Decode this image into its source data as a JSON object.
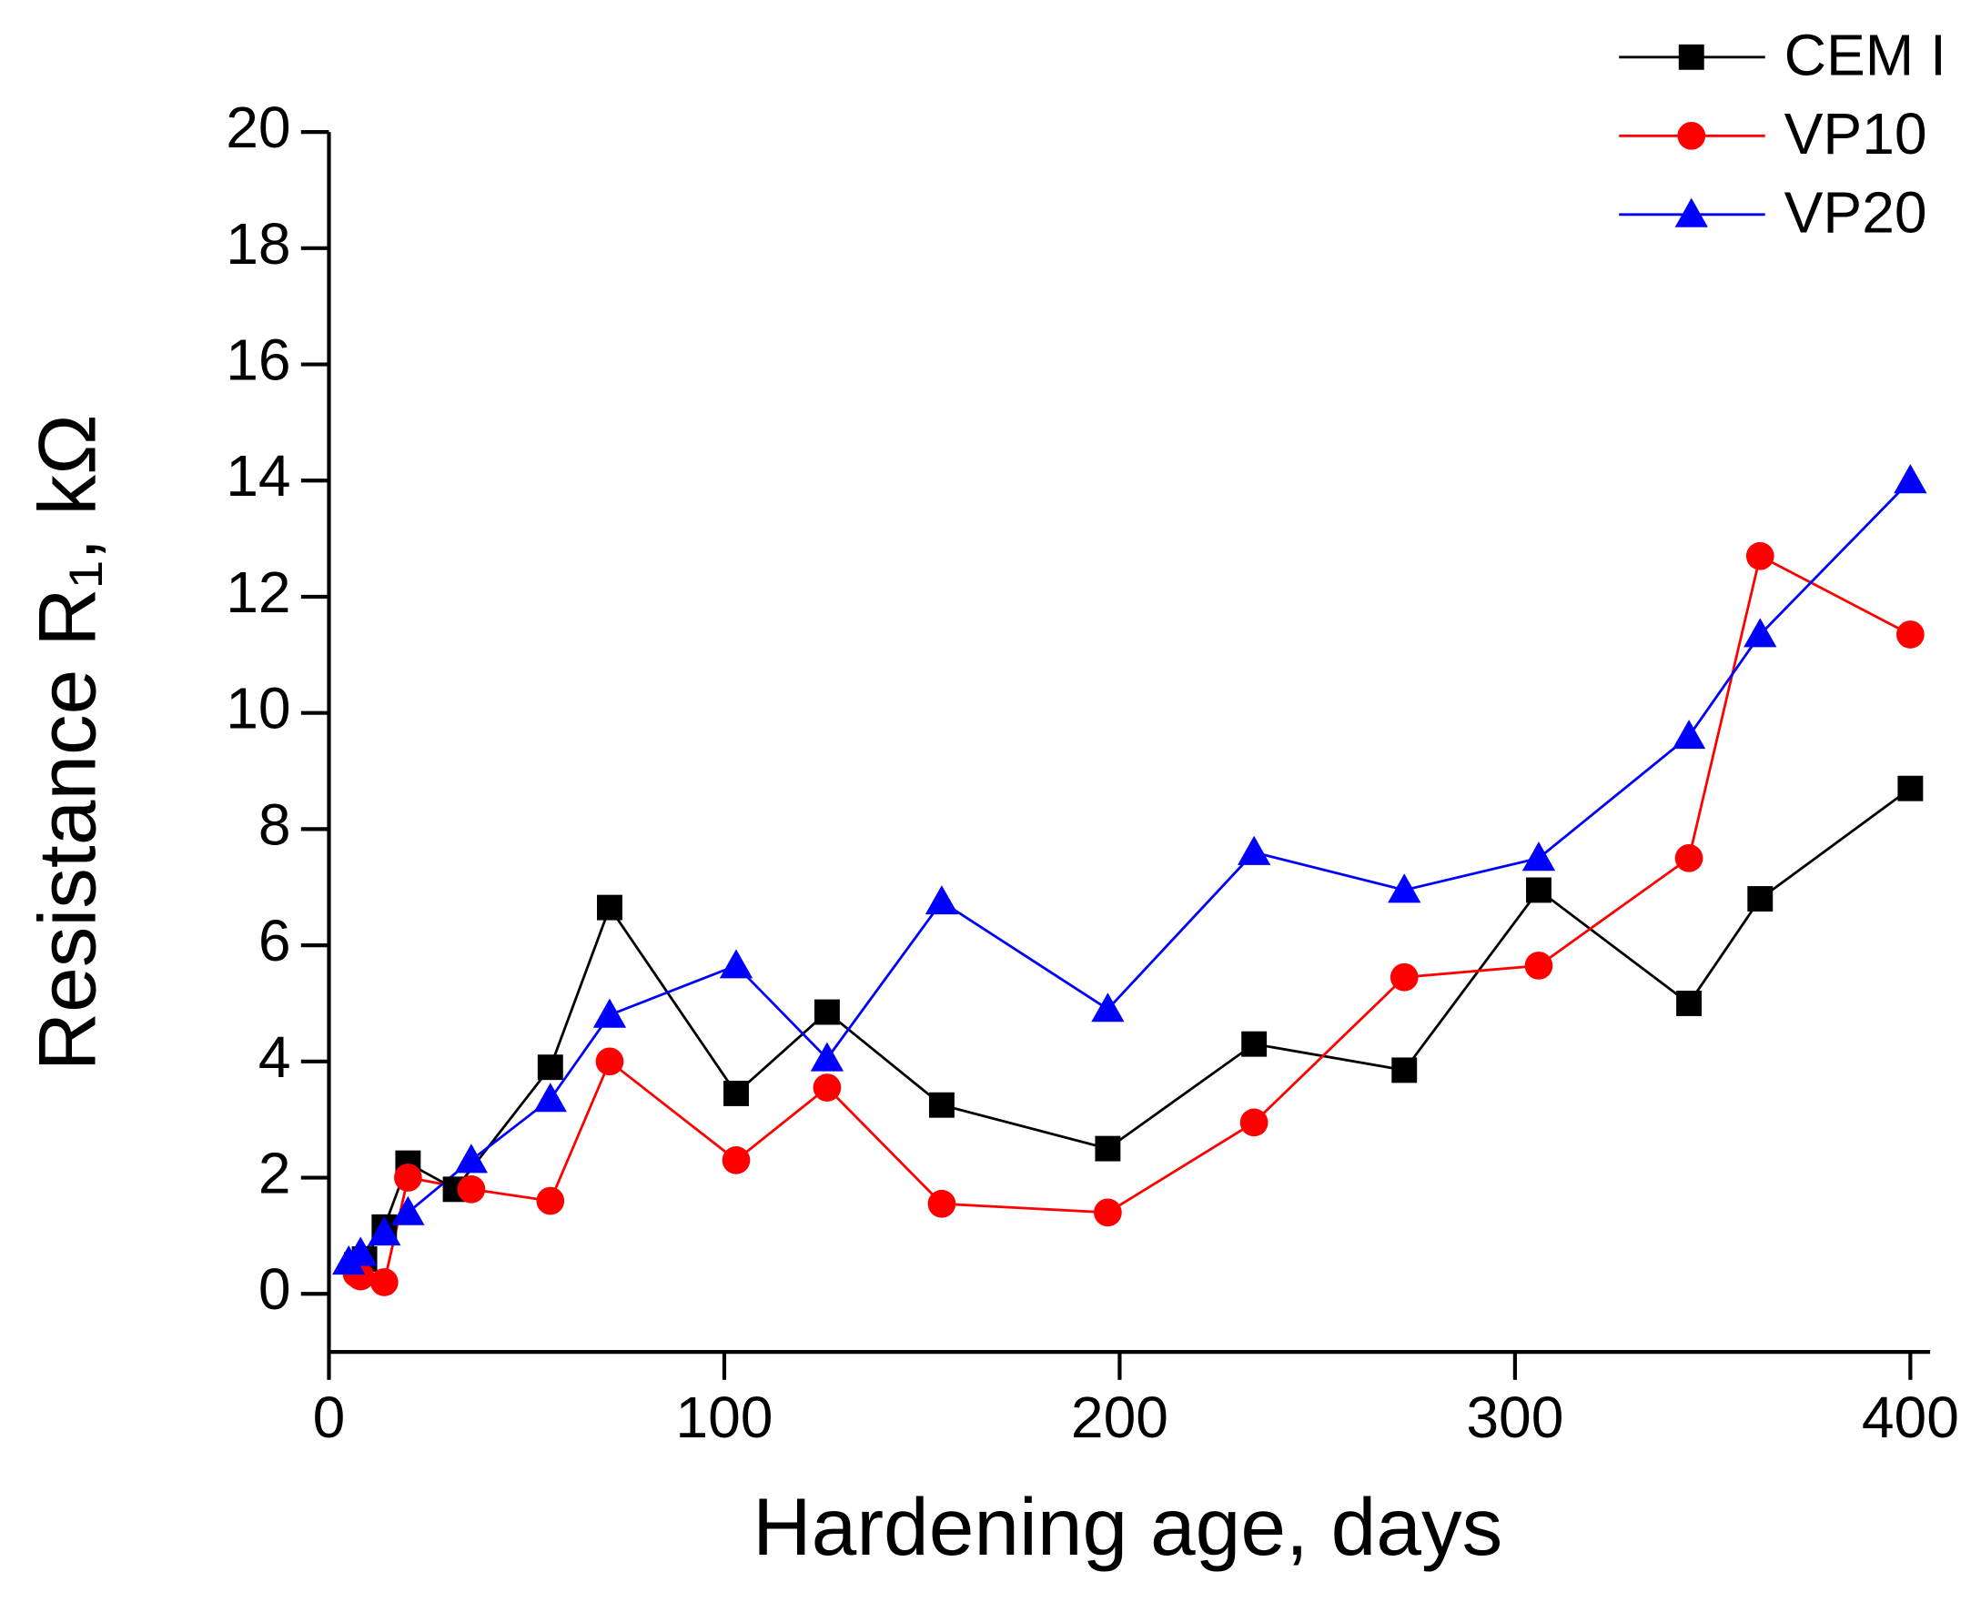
{
  "chart_data": {
    "type": "line",
    "xlabel": "Hardening age, days",
    "ylabel": "Resistance R₁,  kΩ",
    "xlim": [
      0,
      405
    ],
    "ylim": [
      -1,
      20
    ],
    "xticks": [
      0,
      100,
      200,
      300,
      400
    ],
    "yticks": [
      0,
      2,
      4,
      6,
      8,
      10,
      12,
      14,
      16,
      18,
      20
    ],
    "legend": "top-right",
    "series": [
      {
        "name": "CEM I",
        "color": "#000000",
        "marker": "square",
        "x": [
          7,
          9,
          14,
          20,
          32,
          56,
          71,
          103,
          126,
          155,
          197,
          234,
          272,
          306,
          344,
          362,
          400
        ],
        "values": [
          0.5,
          0.6,
          1.15,
          2.25,
          1.8,
          3.9,
          6.65,
          3.45,
          4.85,
          3.25,
          2.5,
          4.3,
          3.85,
          6.95,
          5.0,
          6.8,
          8.7
        ]
      },
      {
        "name": "VP10",
        "color": "#ff0000",
        "marker": "circle",
        "x": [
          7,
          8,
          14,
          20,
          36,
          56,
          71,
          103,
          126,
          155,
          197,
          234,
          272,
          306,
          344,
          362,
          400
        ],
        "values": [
          0.35,
          0.3,
          0.2,
          2.0,
          1.8,
          1.6,
          4.0,
          2.3,
          3.55,
          1.55,
          1.4,
          2.95,
          5.45,
          5.65,
          7.5,
          12.7,
          11.35
        ]
      },
      {
        "name": "VP20",
        "color": "#0000ff",
        "marker": "triangle",
        "x": [
          5,
          8,
          14,
          20,
          36,
          56,
          71,
          103,
          126,
          155,
          197,
          234,
          272,
          306,
          344,
          362,
          400
        ],
        "values": [
          0.55,
          0.7,
          1.05,
          1.4,
          2.3,
          3.35,
          4.8,
          5.65,
          4.05,
          6.75,
          4.9,
          7.6,
          6.95,
          7.5,
          9.6,
          11.35,
          14.0
        ]
      }
    ]
  }
}
